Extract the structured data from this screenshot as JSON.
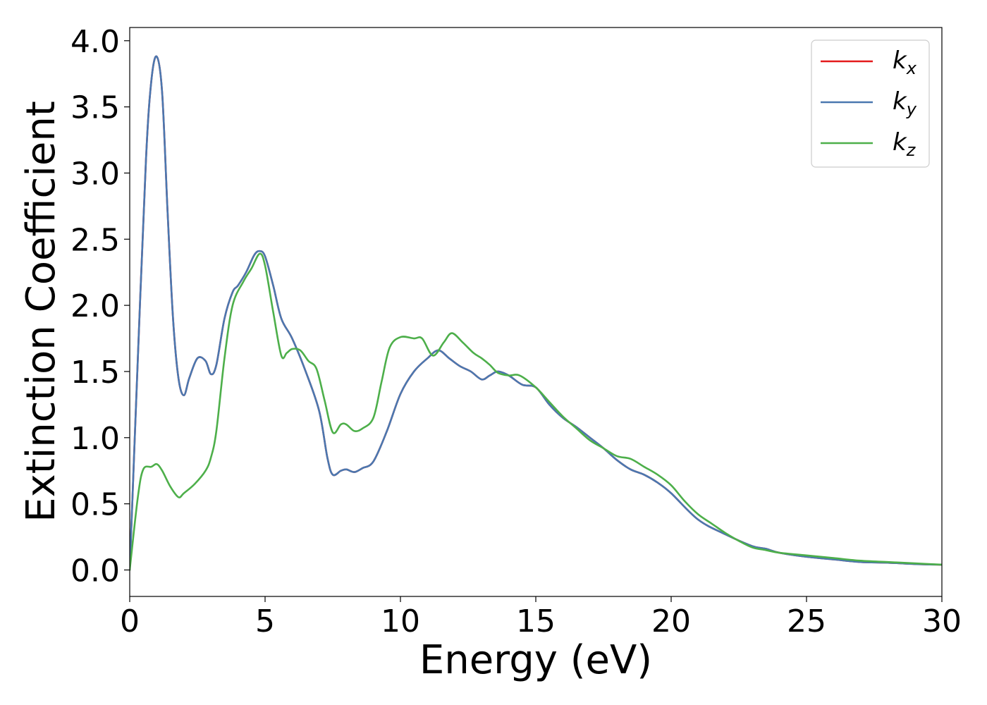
{
  "chart_data": {
    "type": "line",
    "title": "",
    "xlabel": "Energy (eV)",
    "ylabel": "Extinction Coefficient",
    "xlim": [
      0,
      30
    ],
    "ylim": [
      -0.2,
      4.1
    ],
    "xticks": [
      0,
      5,
      10,
      15,
      20,
      25,
      30
    ],
    "xtick_labels": [
      "0",
      "5",
      "10",
      "15",
      "20",
      "25",
      "30"
    ],
    "yticks": [
      0.0,
      0.5,
      1.0,
      1.5,
      2.0,
      2.5,
      3.0,
      3.5,
      4.0
    ],
    "ytick_labels": [
      "0.0",
      "0.5",
      "1.0",
      "1.5",
      "2.0",
      "2.5",
      "3.0",
      "3.5",
      "4.0"
    ],
    "grid": false,
    "legend_position": "top-right",
    "series": [
      {
        "name": "k",
        "subscript": "x",
        "color": "#e41a1c",
        "x": [
          0,
          0.3,
          0.6,
          0.8,
          1.0,
          1.2,
          1.4,
          1.6,
          1.8,
          2.0,
          2.2,
          2.5,
          2.8,
          3.0,
          3.2,
          3.5,
          3.8,
          4.0,
          4.3,
          4.6,
          4.8,
          5.0,
          5.3,
          5.6,
          6.0,
          6.5,
          7.0,
          7.3,
          7.5,
          7.8,
          8.0,
          8.3,
          8.6,
          9.0,
          9.5,
          10.0,
          10.5,
          11.0,
          11.4,
          11.8,
          12.2,
          12.6,
          13.0,
          13.3,
          13.6,
          14.0,
          14.5,
          15.0,
          15.5,
          16.0,
          16.5,
          17.0,
          17.5,
          18.0,
          18.5,
          19.0,
          19.5,
          20.0,
          21.0,
          22.0,
          23.0,
          23.5,
          24.0,
          25.0,
          26.0,
          27.0,
          28.0,
          29.0,
          30.0
        ],
        "values": [
          0.0,
          1.6,
          3.1,
          3.7,
          3.88,
          3.6,
          2.7,
          1.9,
          1.45,
          1.32,
          1.45,
          1.6,
          1.58,
          1.48,
          1.55,
          1.9,
          2.1,
          2.15,
          2.25,
          2.38,
          2.41,
          2.37,
          2.15,
          1.9,
          1.75,
          1.5,
          1.2,
          0.85,
          0.72,
          0.75,
          0.76,
          0.74,
          0.77,
          0.82,
          1.05,
          1.33,
          1.5,
          1.6,
          1.66,
          1.6,
          1.54,
          1.5,
          1.44,
          1.47,
          1.5,
          1.47,
          1.4,
          1.38,
          1.25,
          1.15,
          1.08,
          1.0,
          0.92,
          0.83,
          0.76,
          0.72,
          0.66,
          0.58,
          0.38,
          0.27,
          0.18,
          0.16,
          0.13,
          0.1,
          0.08,
          0.06,
          0.055,
          0.045,
          0.04
        ]
      },
      {
        "name": "k",
        "subscript": "y",
        "color": "#4a78b0",
        "x": [
          0,
          0.3,
          0.6,
          0.8,
          1.0,
          1.2,
          1.4,
          1.6,
          1.8,
          2.0,
          2.2,
          2.5,
          2.8,
          3.0,
          3.2,
          3.5,
          3.8,
          4.0,
          4.3,
          4.6,
          4.8,
          5.0,
          5.3,
          5.6,
          6.0,
          6.5,
          7.0,
          7.3,
          7.5,
          7.8,
          8.0,
          8.3,
          8.6,
          9.0,
          9.5,
          10.0,
          10.5,
          11.0,
          11.4,
          11.8,
          12.2,
          12.6,
          13.0,
          13.3,
          13.6,
          14.0,
          14.5,
          15.0,
          15.5,
          16.0,
          16.5,
          17.0,
          17.5,
          18.0,
          18.5,
          19.0,
          19.5,
          20.0,
          21.0,
          22.0,
          23.0,
          23.5,
          24.0,
          25.0,
          26.0,
          27.0,
          28.0,
          29.0,
          30.0
        ],
        "values": [
          0.0,
          1.6,
          3.1,
          3.7,
          3.88,
          3.6,
          2.7,
          1.9,
          1.45,
          1.32,
          1.45,
          1.6,
          1.58,
          1.48,
          1.55,
          1.9,
          2.1,
          2.15,
          2.25,
          2.38,
          2.41,
          2.37,
          2.15,
          1.9,
          1.75,
          1.5,
          1.2,
          0.85,
          0.72,
          0.75,
          0.76,
          0.74,
          0.77,
          0.82,
          1.05,
          1.33,
          1.5,
          1.6,
          1.66,
          1.6,
          1.54,
          1.5,
          1.44,
          1.47,
          1.5,
          1.47,
          1.4,
          1.38,
          1.25,
          1.15,
          1.08,
          1.0,
          0.92,
          0.83,
          0.76,
          0.72,
          0.66,
          0.58,
          0.38,
          0.27,
          0.18,
          0.16,
          0.13,
          0.1,
          0.08,
          0.06,
          0.055,
          0.045,
          0.04
        ]
      },
      {
        "name": "k",
        "subscript": "z",
        "color": "#4daf4a",
        "x": [
          0,
          0.3,
          0.5,
          0.8,
          1.0,
          1.2,
          1.5,
          1.8,
          2.0,
          2.4,
          2.8,
          3.0,
          3.2,
          3.5,
          3.8,
          4.2,
          4.5,
          4.8,
          5.0,
          5.3,
          5.6,
          5.8,
          6.0,
          6.3,
          6.6,
          6.9,
          7.2,
          7.5,
          7.8,
          8.0,
          8.3,
          8.6,
          9.0,
          9.3,
          9.6,
          10.0,
          10.5,
          10.8,
          11.2,
          11.6,
          11.9,
          12.3,
          12.7,
          13.0,
          13.3,
          13.6,
          14.0,
          14.4,
          15.0,
          15.5,
          16.0,
          16.5,
          17.0,
          17.5,
          18.0,
          18.5,
          19.0,
          19.5,
          20.0,
          20.5,
          21.0,
          21.5,
          22.0,
          22.5,
          23.0,
          23.5,
          24.0,
          25.0,
          26.0,
          27.0,
          28.0,
          29.0,
          30.0
        ],
        "values": [
          0.0,
          0.55,
          0.76,
          0.78,
          0.8,
          0.75,
          0.63,
          0.55,
          0.58,
          0.65,
          0.75,
          0.85,
          1.05,
          1.6,
          2.0,
          2.18,
          2.28,
          2.39,
          2.3,
          1.95,
          1.62,
          1.64,
          1.67,
          1.66,
          1.58,
          1.52,
          1.28,
          1.04,
          1.1,
          1.1,
          1.05,
          1.07,
          1.15,
          1.42,
          1.68,
          1.76,
          1.75,
          1.75,
          1.62,
          1.72,
          1.79,
          1.72,
          1.64,
          1.6,
          1.55,
          1.49,
          1.47,
          1.47,
          1.38,
          1.27,
          1.16,
          1.07,
          0.98,
          0.92,
          0.86,
          0.84,
          0.78,
          0.72,
          0.64,
          0.52,
          0.42,
          0.35,
          0.28,
          0.22,
          0.17,
          0.15,
          0.13,
          0.11,
          0.09,
          0.07,
          0.06,
          0.05,
          0.04
        ]
      }
    ]
  }
}
